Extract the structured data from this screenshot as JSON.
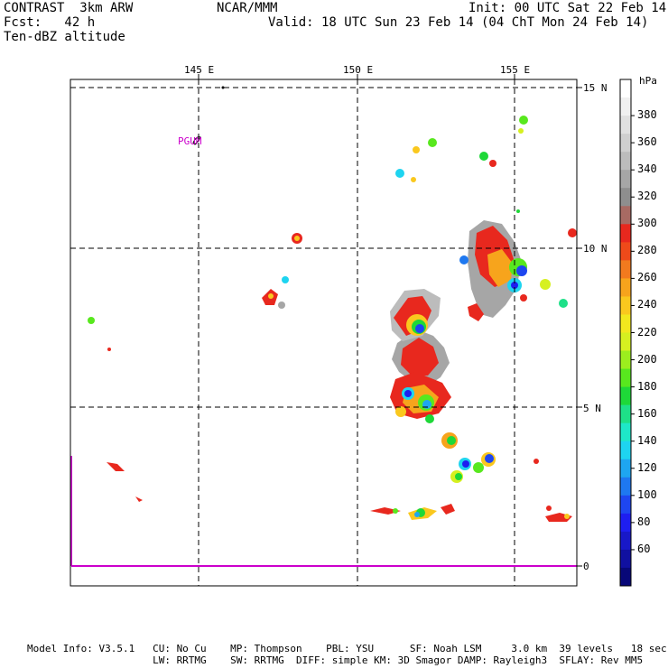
{
  "header": {
    "model_name": "CONTRAST  3km ARW",
    "forecast": "Fcst:   42 h",
    "field_name": "Ten-dBZ altitude",
    "center": "NCAR/MMM",
    "init": "Init: 00 UTC Sat 22 Feb 14",
    "valid": "Valid: 18 UTC Sun 23 Feb 14 (04 ChT Mon 24 Feb 14)"
  },
  "map": {
    "lon_labels": [
      "145 E",
      "150 E",
      "155 E"
    ],
    "lat_labels": [
      "15 N",
      "10 N",
      "5 N",
      "0"
    ],
    "station_label": "PGUM",
    "station_color": "#cc00cc"
  },
  "colorbar": {
    "unit": "hPa",
    "tick_labels": [
      "380",
      "360",
      "340",
      "320",
      "300",
      "280",
      "260",
      "240",
      "220",
      "200",
      "180",
      "160",
      "140",
      "120",
      "100",
      "80",
      "60"
    ],
    "colors": [
      "#ffffff",
      "#f0f0f0",
      "#e0e0e0",
      "#cfcfcf",
      "#bcbcbc",
      "#a6a6a6",
      "#8e8e8e",
      "#a86a63",
      "#e8281e",
      "#ee4a1a",
      "#f27a1e",
      "#f7a41c",
      "#fac81e",
      "#f2e81e",
      "#d6f020",
      "#9cee1e",
      "#58e81e",
      "#1ed838",
      "#1ee088",
      "#1ee8c8",
      "#1ed4f0",
      "#1ea6f0",
      "#1e78f0",
      "#1e46f0",
      "#1e1ef0",
      "#1818c8",
      "#1010a0",
      "#080878"
    ]
  },
  "footer": {
    "line1": "Model Info: V3.5.1   CU: No Cu    MP: Thompson    PBL: YSU      SF: Noah LSM     3.0 km  39 levels   18 sec",
    "line2": "                     LW: RRTMG    SW: RRTMG  DIFF: simple KM: 3D Smagor DAMP: Rayleigh3  SFLAY: Rev MM5"
  }
}
